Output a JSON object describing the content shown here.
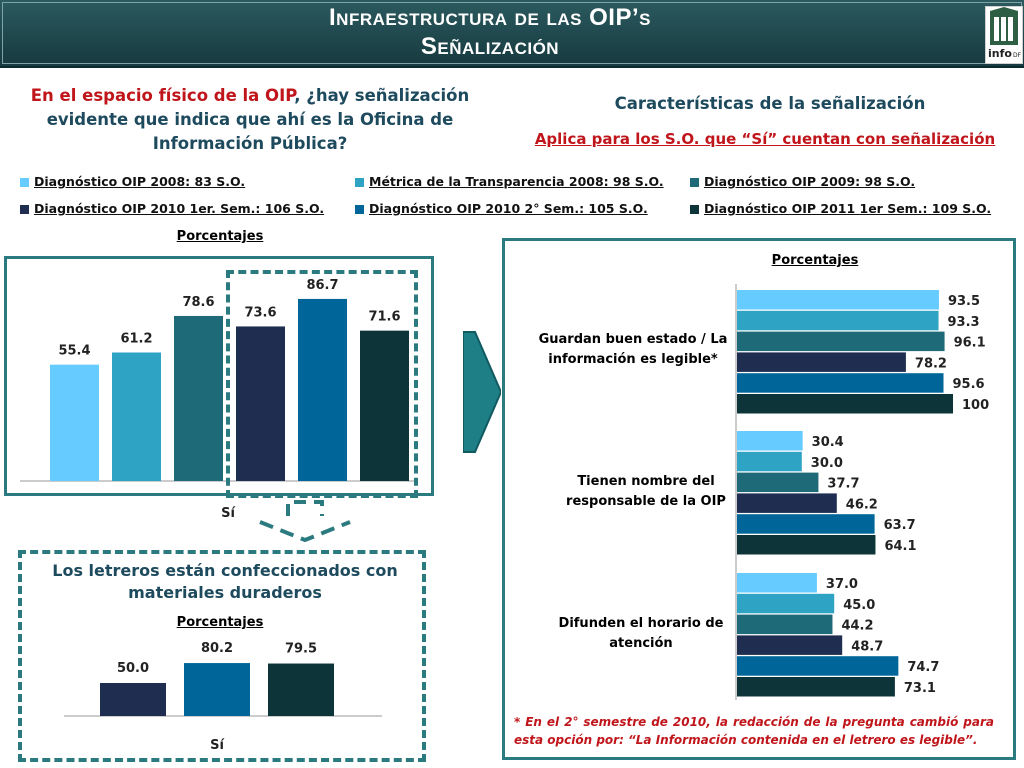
{
  "header": {
    "title_line1": "Infraestructura de las OIP’s",
    "title_line2": "Señalización",
    "logo_text": "info",
    "logo_sup": "DF"
  },
  "left_question": {
    "part_red": "En el espacio físico de la OIP",
    "part_rest": ", ¿hay  señalización evidente que indica que ahí es la Oficina de Información Pública?"
  },
  "right_title": "Características de la señalización",
  "right_subtitle": "Aplica para los S.O. que “Sí” cuentan con señalización",
  "legend": [
    {
      "label": "Diagnóstico OIP 2008: 83 S.O.",
      "color": "#66ccff"
    },
    {
      "label": "Métrica de la Transparencia 2008: 98 S.O.",
      "color": "#2fa3c3"
    },
    {
      "label": "Diagnóstico OIP 2009: 98 S.O.",
      "color": "#1e6a78"
    },
    {
      "label": "Diagnóstico OIP 2010 1er. Sem.: 106 S.O.",
      "color": "#1f2d50"
    },
    {
      "label": "Diagnóstico OIP 2010 2° Sem.: 105 S.O.",
      "color": "#006699"
    },
    {
      "label": "Diagnóstico OIP 2011 1er Sem.: 109 S.O.",
      "color": "#0d3439"
    }
  ],
  "materials_note": "Los  letreros están confeccionados con materiales duraderos",
  "footnote": "* En el 2° semestre de 2010, la redacción de la pregunta cambió para esta opción por: “La Información contenida en el letrero es legible”.",
  "chart_data": [
    {
      "type": "bar",
      "title": "Porcentajes",
      "categories": [
        "Sí"
      ],
      "series": [
        {
          "name": "Diagnóstico OIP 2008: 83 S.O.",
          "values": [
            55.4
          ]
        },
        {
          "name": "Métrica de la Transparencia 2008: 98 S.O.",
          "values": [
            61.2
          ]
        },
        {
          "name": "Diagnóstico OIP 2009: 98 S.O.",
          "values": [
            78.6
          ]
        },
        {
          "name": "Diagnóstico OIP 2010 1er. Sem.: 106 S.O.",
          "values": [
            73.6
          ]
        },
        {
          "name": "Diagnóstico OIP 2010 2° Sem.: 105 S.O.",
          "values": [
            86.7
          ]
        },
        {
          "name": "Diagnóstico OIP 2011 1er Sem.: 109 S.O.",
          "values": [
            71.6
          ]
        }
      ],
      "ylim": [
        0,
        100
      ]
    },
    {
      "type": "bar",
      "title": "Porcentajes",
      "categories": [
        "Sí"
      ],
      "series": [
        {
          "name": "Diagnóstico OIP 2010 1er. Sem.: 106 S.O.",
          "values": [
            50.0
          ]
        },
        {
          "name": "Diagnóstico OIP 2010 2° Sem.: 105 S.O.",
          "values": [
            80.2
          ]
        },
        {
          "name": "Diagnóstico OIP 2011 1er Sem.: 109 S.O.",
          "values": [
            79.5
          ]
        }
      ],
      "ylim": [
        0,
        100
      ]
    },
    {
      "type": "bar",
      "orientation": "horizontal",
      "title": "Porcentajes",
      "categories": [
        "Guardan buen estado / La información es legible*",
        "Tienen nombre del responsable de la OIP",
        "Difunden el horario de atención"
      ],
      "series": [
        {
          "name": "Diagnóstico OIP 2008: 83 S.O.",
          "values": [
            93.5,
            30.4,
            37.0
          ]
        },
        {
          "name": "Métrica de la Transparencia 2008: 98 S.O.",
          "values": [
            93.3,
            30.0,
            45.0
          ]
        },
        {
          "name": "Diagnóstico OIP 2009: 98 S.O.",
          "values": [
            96.1,
            37.7,
            44.2
          ]
        },
        {
          "name": "Diagnóstico OIP 2010 1er. Sem.: 106 S.O.",
          "values": [
            78.2,
            46.2,
            48.7
          ]
        },
        {
          "name": "Diagnóstico OIP 2010 2° Sem.: 105 S.O.",
          "values": [
            95.6,
            63.7,
            74.7
          ]
        },
        {
          "name": "Diagnóstico OIP 2011 1er Sem.: 109 S.O.",
          "values": [
            100,
            64.1,
            73.1
          ]
        }
      ],
      "xlim": [
        0,
        100
      ]
    }
  ]
}
